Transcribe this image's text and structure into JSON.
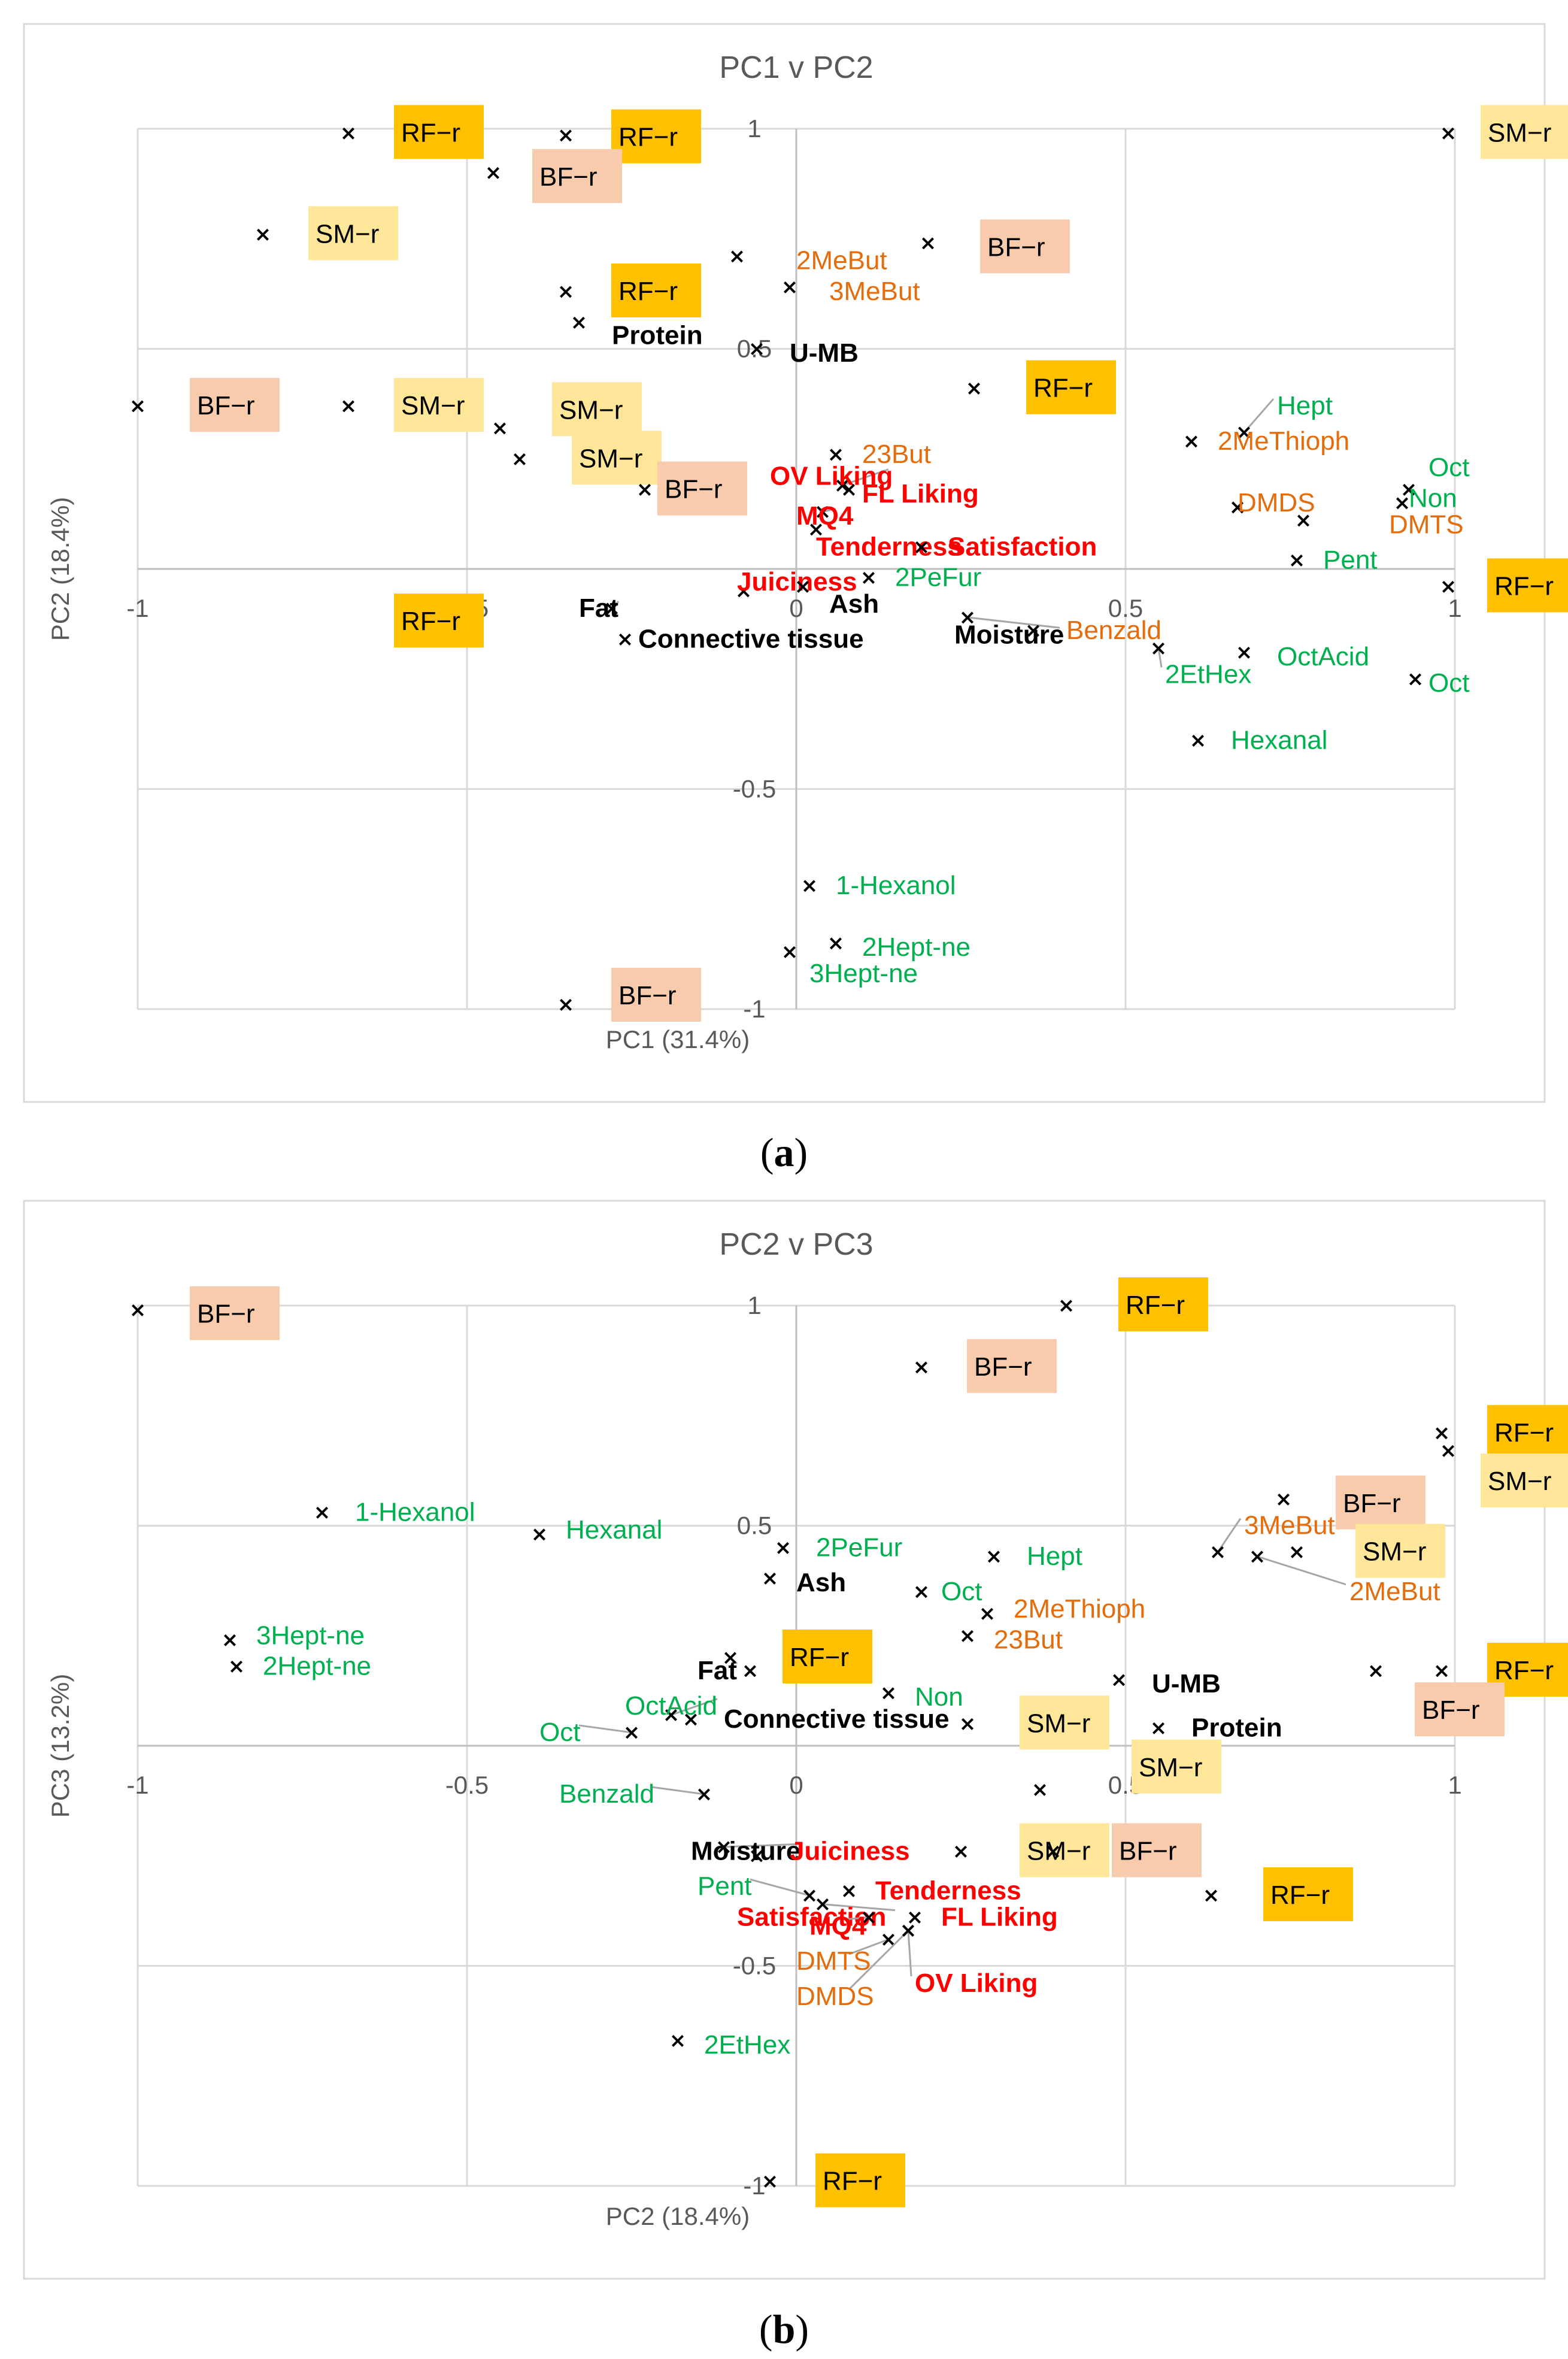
{
  "colors": {
    "RF": "#ffc000",
    "SM": "#ffe699",
    "BF": "#f8cbad",
    "orange_text": "#e46c0a",
    "green_text": "#00b050",
    "red_text": "#ff0000",
    "black_text": "#000000"
  },
  "captions": [
    "a",
    "b"
  ],
  "chart_data": [
    {
      "type": "scatter",
      "title": "PC1 v PC2",
      "xlabel": "PC1 (31.4%)",
      "ylabel": "PC2 (18.4%)",
      "xlim": [
        -1,
        1
      ],
      "ylim": [
        -1,
        1
      ],
      "xticks": [
        -1,
        -0.5,
        0,
        0.5,
        1
      ],
      "yticks": [
        -1,
        -0.5,
        0,
        0.5,
        1
      ],
      "xtick_labels": [
        "-1",
        "-0.5",
        "0",
        "0.5",
        "1"
      ],
      "ytick_labels": [
        "-1",
        "-0.5",
        "0",
        "0.5",
        "1"
      ],
      "points": [
        {
          "label": "RF−r",
          "group": "RF",
          "x": -0.68,
          "y": 0.99,
          "lx": -0.6,
          "ly": 0.99
        },
        {
          "label": "RF−r",
          "group": "RF",
          "x": -0.35,
          "y": 0.985,
          "lx": -0.27,
          "ly": 0.98
        },
        {
          "label": "BF−r",
          "group": "BF",
          "x": -0.46,
          "y": 0.9,
          "lx": -0.39,
          "ly": 0.89
        },
        {
          "label": "SM−r",
          "group": "SM",
          "x": -0.81,
          "y": 0.76,
          "lx": -0.73,
          "ly": 0.76
        },
        {
          "label": "SM−r",
          "group": "SM",
          "x": 0.99,
          "y": 0.99,
          "lx": 1.05,
          "ly": 0.99
        },
        {
          "label": "BF−r",
          "group": "BF",
          "x": 0.2,
          "y": 0.74,
          "lx": 0.29,
          "ly": 0.73
        },
        {
          "label": "2MeBut",
          "group": "orange",
          "x": -0.09,
          "y": 0.71,
          "lx": 0.0,
          "ly": 0.7
        },
        {
          "label": "3MeBut",
          "group": "orange",
          "x": -0.01,
          "y": 0.64,
          "lx": 0.05,
          "ly": 0.63
        },
        {
          "label": "RF−r",
          "group": "RF",
          "x": -0.35,
          "y": 0.63,
          "lx": -0.27,
          "ly": 0.63
        },
        {
          "label": "Protein",
          "group": "black",
          "x": -0.33,
          "y": 0.56,
          "lx": -0.28,
          "ly": 0.53
        },
        {
          "label": "U-MB",
          "group": "black",
          "x": -0.06,
          "y": 0.5,
          "lx": -0.01,
          "ly": 0.49
        },
        {
          "label": "RF−r",
          "group": "RF",
          "x": 0.27,
          "y": 0.41,
          "lx": 0.36,
          "ly": 0.41
        },
        {
          "label": "BF−r",
          "group": "BF",
          "x": -1.0,
          "y": 0.37,
          "lx": -0.91,
          "ly": 0.37
        },
        {
          "label": "SM−r",
          "group": "SM",
          "x": -0.68,
          "y": 0.37,
          "lx": -0.6,
          "ly": 0.37
        },
        {
          "label": "SM−r",
          "group": "SM",
          "x": -0.45,
          "y": 0.32,
          "lx": -0.36,
          "ly": 0.36
        },
        {
          "label": "SM−r",
          "group": "SM",
          "x": -0.42,
          "y": 0.25,
          "lx": -0.33,
          "ly": 0.25
        },
        {
          "label": "BF−r",
          "group": "BF",
          "x": -0.23,
          "y": 0.18,
          "lx": -0.2,
          "ly": 0.18
        },
        {
          "label": "23But",
          "group": "orange",
          "x": 0.06,
          "y": 0.26,
          "lx": 0.1,
          "ly": 0.26
        },
        {
          "label": "OV Liking",
          "group": "red",
          "x": 0.07,
          "y": 0.19,
          "lx": -0.04,
          "ly": 0.21
        },
        {
          "label": "FL Liking",
          "group": "red",
          "x": 0.08,
          "y": 0.18,
          "lx": 0.1,
          "ly": 0.17
        },
        {
          "label": "MQ4",
          "group": "red",
          "x": 0.04,
          "y": 0.13,
          "lx": 0.0,
          "ly": 0.12
        },
        {
          "label": "Tenderness",
          "group": "red",
          "x": 0.03,
          "y": 0.09,
          "lx": 0.03,
          "ly": 0.05
        },
        {
          "label": "Satisfaction",
          "group": "red",
          "x": 0.19,
          "y": 0.05,
          "lx": 0.23,
          "ly": 0.05
        },
        {
          "label": "Juiciness",
          "group": "red",
          "x": -0.08,
          "y": -0.05,
          "lx": -0.09,
          "ly": -0.03
        },
        {
          "label": "Ash",
          "group": "black",
          "x": 0.01,
          "y": -0.04,
          "lx": 0.05,
          "ly": -0.08
        },
        {
          "label": "2PeFur",
          "group": "green",
          "x": 0.11,
          "y": -0.02,
          "lx": 0.15,
          "ly": -0.02
        },
        {
          "label": "Fat",
          "group": "black",
          "x": -0.28,
          "y": -0.09,
          "lx": -0.33,
          "ly": -0.09
        },
        {
          "label": "Connective tissue",
          "group": "black",
          "x": -0.26,
          "y": -0.16,
          "lx": -0.24,
          "ly": -0.16
        },
        {
          "label": "Moisture",
          "group": "black",
          "x": 0.26,
          "y": -0.11,
          "lx": 0.24,
          "ly": -0.15
        },
        {
          "label": "Benzald",
          "group": "orange",
          "x": 0.36,
          "y": -0.14,
          "lx": 0.41,
          "ly": -0.14
        },
        {
          "label": "RF−r",
          "group": "RF",
          "x": -0.53,
          "y": -0.12,
          "lx": -0.6,
          "ly": -0.12
        },
        {
          "label": "Hept",
          "group": "green",
          "x": 0.68,
          "y": 0.31,
          "lx": 0.73,
          "ly": 0.37
        },
        {
          "label": "2MeThioph",
          "group": "orange",
          "x": 0.6,
          "y": 0.29,
          "lx": 0.64,
          "ly": 0.29
        },
        {
          "label": "Oct",
          "group": "green",
          "x": 0.93,
          "y": 0.18,
          "lx": 0.96,
          "ly": 0.23
        },
        {
          "label": "Non",
          "group": "green",
          "x": 0.92,
          "y": 0.15,
          "lx": 0.93,
          "ly": 0.16
        },
        {
          "label": "DMDS",
          "group": "orange",
          "x": 0.67,
          "y": 0.14,
          "lx": 0.67,
          "ly": 0.15
        },
        {
          "label": "DMTS",
          "group": "orange",
          "x": 0.77,
          "y": 0.11,
          "lx": 0.9,
          "ly": 0.1
        },
        {
          "label": "Pent",
          "group": "green",
          "x": 0.76,
          "y": 0.02,
          "lx": 0.8,
          "ly": 0.02
        },
        {
          "label": "RF−r",
          "group": "RF",
          "x": 0.99,
          "y": -0.04,
          "lx": 1.06,
          "ly": -0.04
        },
        {
          "label": "2EtHex",
          "group": "green",
          "x": 0.55,
          "y": -0.18,
          "lx": 0.56,
          "ly": -0.24
        },
        {
          "label": "OctAcid",
          "group": "green",
          "x": 0.68,
          "y": -0.19,
          "lx": 0.73,
          "ly": -0.2
        },
        {
          "label": "Oct",
          "group": "green",
          "x": 0.94,
          "y": -0.25,
          "lx": 0.96,
          "ly": -0.26
        },
        {
          "label": "Hexanal",
          "group": "green",
          "x": 0.61,
          "y": -0.39,
          "lx": 0.66,
          "ly": -0.39
        },
        {
          "label": "1-Hexanol",
          "group": "green",
          "x": 0.02,
          "y": -0.72,
          "lx": 0.06,
          "ly": -0.72
        },
        {
          "label": "2Hept-ne",
          "group": "green",
          "x": 0.06,
          "y": -0.85,
          "lx": 0.1,
          "ly": -0.86
        },
        {
          "label": "3Hept-ne",
          "group": "green",
          "x": -0.01,
          "y": -0.87,
          "lx": 0.02,
          "ly": -0.92
        },
        {
          "label": "BF−r",
          "group": "BF",
          "x": -0.35,
          "y": -0.99,
          "lx": -0.27,
          "ly": -0.97
        }
      ]
    },
    {
      "type": "scatter",
      "title": "PC2 v PC3",
      "xlabel": "PC2 (18.4%)",
      "ylabel": "PC3 (13.2%)",
      "xlim": [
        -1,
        1
      ],
      "ylim": [
        -1,
        1
      ],
      "xticks": [
        -1,
        -0.5,
        0,
        0.5,
        1
      ],
      "yticks": [
        -1,
        -0.5,
        0,
        0.5,
        1
      ],
      "xtick_labels": [
        "-1",
        "-0.5",
        "0",
        "0.5",
        "1"
      ],
      "ytick_labels": [
        "-1",
        "-0.5",
        "0",
        "0.5",
        "1"
      ],
      "points": [
        {
          "label": "BF−r",
          "group": "BF",
          "x": -1.0,
          "y": 0.99,
          "lx": -0.91,
          "ly": 0.98
        },
        {
          "label": "RF−r",
          "group": "RF",
          "x": 0.41,
          "y": 1.0,
          "lx": 0.5,
          "ly": 1.0
        },
        {
          "label": "BF−r",
          "group": "BF",
          "x": 0.19,
          "y": 0.86,
          "lx": 0.27,
          "ly": 0.86
        },
        {
          "label": "RF−r",
          "group": "RF",
          "x": 0.98,
          "y": 0.71,
          "lx": 1.06,
          "ly": 0.71
        },
        {
          "label": "SM−r",
          "group": "SM",
          "x": 0.99,
          "y": 0.67,
          "lx": 1.05,
          "ly": 0.6
        },
        {
          "label": "BF−r",
          "group": "BF",
          "x": 0.74,
          "y": 0.56,
          "lx": 0.83,
          "ly": 0.55
        },
        {
          "label": "3MeBut",
          "group": "orange",
          "x": 0.64,
          "y": 0.44,
          "lx": 0.68,
          "ly": 0.5
        },
        {
          "label": "SM−r",
          "group": "SM",
          "x": 0.76,
          "y": 0.44,
          "lx": 0.86,
          "ly": 0.44
        },
        {
          "label": "2MeBut",
          "group": "orange",
          "x": 0.7,
          "y": 0.43,
          "lx": 0.84,
          "ly": 0.35
        },
        {
          "label": "1-Hexanol",
          "group": "green",
          "x": -0.72,
          "y": 0.53,
          "lx": -0.67,
          "ly": 0.53
        },
        {
          "label": "Hexanal",
          "group": "green",
          "x": -0.39,
          "y": 0.48,
          "lx": -0.35,
          "ly": 0.49
        },
        {
          "label": "2PeFur",
          "group": "green",
          "x": -0.02,
          "y": 0.45,
          "lx": 0.03,
          "ly": 0.45
        },
        {
          "label": "Hept",
          "group": "green",
          "x": 0.3,
          "y": 0.43,
          "lx": 0.35,
          "ly": 0.43
        },
        {
          "label": "Ash",
          "group": "black",
          "x": -0.04,
          "y": 0.38,
          "lx": 0.0,
          "ly": 0.37
        },
        {
          "label": "Oct",
          "group": "green",
          "x": 0.19,
          "y": 0.35,
          "lx": 0.22,
          "ly": 0.35
        },
        {
          "label": "2MeThioph",
          "group": "orange",
          "x": 0.29,
          "y": 0.3,
          "lx": 0.33,
          "ly": 0.31
        },
        {
          "label": "23But",
          "group": "orange",
          "x": 0.26,
          "y": 0.25,
          "lx": 0.3,
          "ly": 0.24
        },
        {
          "label": "3Hept-ne",
          "group": "green",
          "x": -0.86,
          "y": 0.24,
          "lx": -0.82,
          "ly": 0.25
        },
        {
          "label": "2Hept-ne",
          "group": "green",
          "x": -0.85,
          "y": 0.18,
          "lx": -0.81,
          "ly": 0.18
        },
        {
          "label": "Fat",
          "group": "black",
          "x": -0.1,
          "y": 0.2,
          "lx": -0.15,
          "ly": 0.17
        },
        {
          "label": "RF−r",
          "group": "RF",
          "x": -0.07,
          "y": 0.17,
          "lx": -0.01,
          "ly": 0.2
        },
        {
          "label": "U-MB",
          "group": "black",
          "x": 0.49,
          "y": 0.15,
          "lx": 0.54,
          "ly": 0.14
        },
        {
          "label": "Non",
          "group": "green",
          "x": 0.14,
          "y": 0.12,
          "lx": 0.18,
          "ly": 0.11
        },
        {
          "label": "RF−r",
          "group": "RF",
          "x": 0.98,
          "y": 0.17,
          "lx": 1.06,
          "ly": 0.17
        },
        {
          "label": "BF−r",
          "group": "BF",
          "x": 0.88,
          "y": 0.17,
          "lx": 0.95,
          "ly": 0.08
        },
        {
          "label": "OctAcid",
          "group": "green",
          "x": -0.19,
          "y": 0.07,
          "lx": -0.26,
          "ly": 0.09
        },
        {
          "label": "Oct",
          "group": "green",
          "x": -0.25,
          "y": 0.03,
          "lx": -0.39,
          "ly": 0.03
        },
        {
          "label": "Connective tissue",
          "group": "black",
          "x": -0.16,
          "y": 0.06,
          "lx": -0.11,
          "ly": 0.06
        },
        {
          "label": "SM−r",
          "group": "SM",
          "x": 0.26,
          "y": 0.05,
          "lx": 0.35,
          "ly": 0.05
        },
        {
          "label": "Protein",
          "group": "black",
          "x": 0.55,
          "y": 0.04,
          "lx": 0.6,
          "ly": 0.04
        },
        {
          "label": "SM−r",
          "group": "SM",
          "x": 0.37,
          "y": -0.1,
          "lx": 0.52,
          "ly": -0.05
        },
        {
          "label": "Benzald",
          "group": "green",
          "x": -0.14,
          "y": -0.11,
          "lx": -0.36,
          "ly": -0.11
        },
        {
          "label": "Moisture",
          "group": "black",
          "x": -0.11,
          "y": -0.23,
          "lx": -0.16,
          "ly": -0.24
        },
        {
          "label": "Juiciness",
          "group": "red",
          "x": -0.06,
          "y": -0.25,
          "lx": -0.01,
          "ly": -0.24
        },
        {
          "label": "SM−r",
          "group": "SM",
          "x": 0.25,
          "y": -0.24,
          "lx": 0.35,
          "ly": -0.24
        },
        {
          "label": "BF−r",
          "group": "BF",
          "x": 0.39,
          "y": -0.24,
          "lx": 0.49,
          "ly": -0.24
        },
        {
          "label": "Pent",
          "group": "green",
          "x": 0.02,
          "y": -0.34,
          "lx": -0.15,
          "ly": -0.32
        },
        {
          "label": "Tenderness",
          "group": "red",
          "x": 0.08,
          "y": -0.33,
          "lx": 0.12,
          "ly": -0.33
        },
        {
          "label": "Satisfaction",
          "group": "red",
          "x": 0.04,
          "y": -0.36,
          "lx": -0.09,
          "ly": -0.39
        },
        {
          "label": "MQ4",
          "group": "red",
          "x": 0.11,
          "y": -0.39,
          "lx": 0.02,
          "ly": -0.41
        },
        {
          "label": "FL Liking",
          "group": "red",
          "x": 0.18,
          "y": -0.39,
          "lx": 0.22,
          "ly": -0.39
        },
        {
          "label": "DMTS",
          "group": "orange",
          "x": 0.14,
          "y": -0.44,
          "lx": 0.0,
          "ly": -0.49
        },
        {
          "label": "DMDS",
          "group": "orange",
          "x": 0.17,
          "y": -0.42,
          "lx": 0.0,
          "ly": -0.57
        },
        {
          "label": "OV Liking",
          "group": "red",
          "x": 0.17,
          "y": -0.42,
          "lx": 0.18,
          "ly": -0.54
        },
        {
          "label": "RF−r",
          "group": "RF",
          "x": 0.63,
          "y": -0.34,
          "lx": 0.72,
          "ly": -0.34
        },
        {
          "label": "2EtHex",
          "group": "green",
          "x": -0.18,
          "y": -0.67,
          "lx": -0.14,
          "ly": -0.68
        },
        {
          "label": "RF−r",
          "group": "RF",
          "x": -0.04,
          "y": -0.99,
          "lx": 0.04,
          "ly": -0.99
        }
      ]
    }
  ]
}
